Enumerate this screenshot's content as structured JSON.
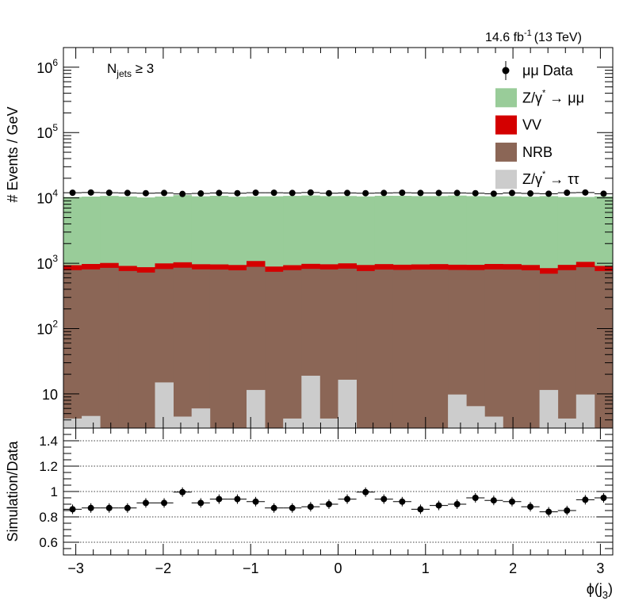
{
  "header": {
    "lumi": "14.6 fb",
    "lumi_exp": "-1",
    "energy": "(13 TeV)"
  },
  "selection": {
    "label_main": "N",
    "label_sub": "jets",
    "label_rest": " ≥ 3"
  },
  "chart_data": [
    {
      "type": "bar",
      "stacked": true,
      "log_y": true,
      "ylabel": "# Events / GeV",
      "xlabel_main": "ϕ(j",
      "xlabel_sub": "3",
      "xlabel_close": ")",
      "xlim": [
        -3.14159,
        3.14159
      ],
      "ylim": [
        3,
        2000000
      ],
      "x_ticks": [
        "−3",
        "−2",
        "−1",
        "0",
        "1",
        "2",
        "3"
      ],
      "x_tick_values": [
        -3,
        -2,
        -1,
        0,
        1,
        2,
        3
      ],
      "y_ticks": [
        {
          "value": 10,
          "base": "10",
          "exp": ""
        },
        {
          "value": 100,
          "base": "10",
          "exp": "2"
        },
        {
          "value": 1000,
          "base": "10",
          "exp": "3"
        },
        {
          "value": 10000,
          "base": "10",
          "exp": "4"
        },
        {
          "value": 100000,
          "base": "10",
          "exp": "5"
        },
        {
          "value": 1000000,
          "base": "10",
          "exp": "6"
        }
      ],
      "legend": [
        {
          "label": "μμ Data",
          "kind": "marker",
          "color": "#000000"
        },
        {
          "label_pre": "Z/γ",
          "label_sup": "*",
          "label_post": " → μμ",
          "kind": "box",
          "color": "#99cc99"
        },
        {
          "label": "VV",
          "kind": "box",
          "color": "#d40000"
        },
        {
          "label": "NRB",
          "kind": "box",
          "color": "#8b6656"
        },
        {
          "label_pre": "Z/γ",
          "label_sup": "*",
          "label_post": " → ττ",
          "kind": "box",
          "color": "#cccccc"
        }
      ],
      "n_bins": 30,
      "series": [
        {
          "name": "Z/γ* → ττ",
          "color": "#cccccc",
          "values": [
            4.2,
            4.6,
            0,
            0,
            0,
            15,
            4.5,
            6,
            0,
            0,
            11.5,
            0,
            4.2,
            19,
            4.2,
            16.5,
            0,
            0,
            0,
            0,
            0,
            9.8,
            6.5,
            4.5,
            0,
            0,
            11.5,
            4.2,
            9.8,
            0
          ]
        },
        {
          "name": "NRB",
          "color": "#8b6656",
          "values": [
            780,
            800,
            850,
            760,
            720,
            800,
            850,
            800,
            800,
            780,
            870,
            740,
            780,
            800,
            800,
            810,
            760,
            800,
            790,
            800,
            800,
            780,
            780,
            800,
            800,
            780,
            680,
            780,
            860,
            760
          ]
        },
        {
          "name": "VV",
          "color": "#d40000",
          "values": [
            150,
            170,
            160,
            150,
            150,
            180,
            180,
            160,
            160,
            160,
            200,
            150,
            150,
            160,
            160,
            170,
            180,
            170,
            160,
            160,
            170,
            160,
            160,
            170,
            170,
            160,
            150,
            160,
            180,
            150
          ]
        },
        {
          "name": "Z/γ* → μμ",
          "color": "#99cc99",
          "values": [
            9400,
            9500,
            9700,
            9600,
            9300,
            9500,
            10000,
            9600,
            9800,
            9500,
            9500,
            9700,
            9800,
            9900,
            9700,
            9700,
            9600,
            9800,
            9800,
            9700,
            9700,
            9900,
            9700,
            9600,
            9600,
            9500,
            9800,
            9400,
            9300,
            9700
          ]
        },
        {
          "name": "μμ Data",
          "color": "#000000",
          "values": [
            12000,
            12100,
            12000,
            11900,
            11800,
            11900,
            11500,
            11700,
            11900,
            11800,
            12000,
            12000,
            11900,
            12100,
            11800,
            11900,
            11800,
            11900,
            12000,
            11900,
            11900,
            11900,
            11800,
            11600,
            11900,
            11700,
            11600,
            12000,
            12100,
            11600
          ]
        }
      ]
    },
    {
      "type": "scatter",
      "ylabel": "Simulation/Data",
      "xlim": [
        -3.14159,
        3.14159
      ],
      "ylim": [
        0.5,
        1.5
      ],
      "y_ticks": [
        "0.6",
        "0.8",
        "1",
        "1.2",
        "1.4"
      ],
      "y_tick_values": [
        0.6,
        0.8,
        1.0,
        1.2,
        1.4
      ],
      "gridlines": [
        0.6,
        0.8,
        1.0,
        1.2,
        1.4
      ],
      "series": [
        {
          "name": "Simulation/Data",
          "values": [
            0.86,
            0.87,
            0.87,
            0.87,
            0.91,
            0.91,
            0.995,
            0.91,
            0.94,
            0.94,
            0.92,
            0.87,
            0.87,
            0.88,
            0.9,
            0.94,
            0.995,
            0.94,
            0.92,
            0.86,
            0.89,
            0.9,
            0.95,
            0.93,
            0.92,
            0.88,
            0.84,
            0.85,
            0.935,
            0.95
          ]
        }
      ]
    }
  ]
}
